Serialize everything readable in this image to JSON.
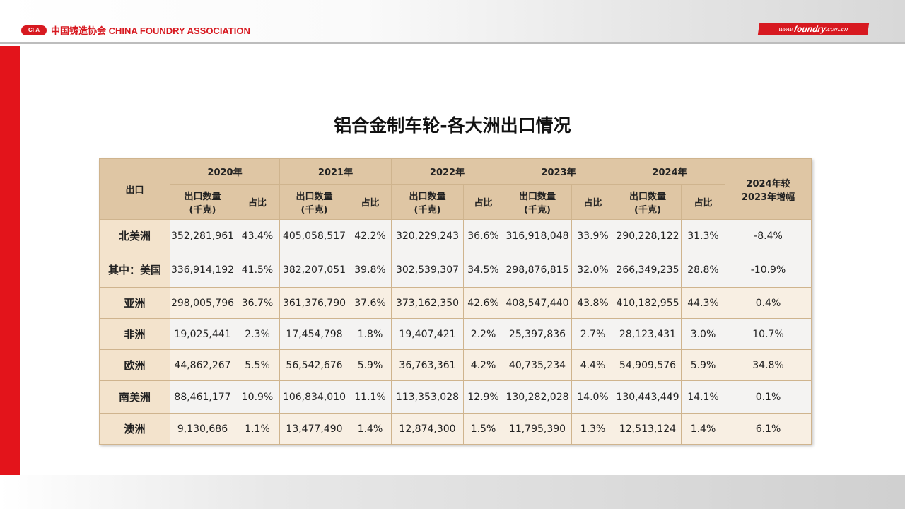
{
  "header": {
    "logo_mark": "CFA",
    "logo_text": "中国铸造协会 CHINA FOUNDRY ASSOCIATION",
    "website_prefix": "www.",
    "website_main": "foundry",
    "website_suffix": ".com.cn"
  },
  "title": "铝合金制车轮-各大洲出口情况",
  "table": {
    "corner": "出口",
    "years": [
      "2020年",
      "2021年",
      "2022年",
      "2023年",
      "2024年"
    ],
    "qty_header_line1": "出口数量",
    "qty_header_line2": "(千克)",
    "share_header": "占比",
    "growth_header_line1": "2024年较",
    "growth_header_line2": "2023年增幅",
    "rows": [
      {
        "label": "北美洲",
        "cells": [
          "352,281,961",
          "43.4%",
          "405,058,517",
          "42.2%",
          "320,229,243",
          "36.6%",
          "316,918,048",
          "33.9%",
          "290,228,122",
          "31.3%",
          "-8.4%"
        ]
      },
      {
        "label": "其中：美国",
        "cells": [
          "336,914,192",
          "41.5%",
          "382,207,051",
          "39.8%",
          "302,539,307",
          "34.5%",
          "298,876,815",
          "32.0%",
          "266,349,235",
          "28.8%",
          "-10.9%"
        ]
      },
      {
        "label": "亚洲",
        "cells": [
          "298,005,796",
          "36.7%",
          "361,376,790",
          "37.6%",
          "373,162,350",
          "42.6%",
          "408,547,440",
          "43.8%",
          "410,182,955",
          "44.3%",
          "0.4%"
        ]
      },
      {
        "label": "非洲",
        "cells": [
          "19,025,441",
          "2.3%",
          "17,454,798",
          "1.8%",
          "19,407,421",
          "2.2%",
          "25,397,836",
          "2.7%",
          "28,123,431",
          "3.0%",
          "10.7%"
        ]
      },
      {
        "label": "欧洲",
        "cells": [
          "44,862,267",
          "5.5%",
          "56,542,676",
          "5.9%",
          "36,763,361",
          "4.2%",
          "40,735,234",
          "4.4%",
          "54,909,576",
          "5.9%",
          "34.8%"
        ]
      },
      {
        "label": "南美洲",
        "cells": [
          "88,461,177",
          "10.9%",
          "106,834,010",
          "11.1%",
          "113,353,028",
          "12.9%",
          "130,282,028",
          "14.0%",
          "130,443,449",
          "14.1%",
          "0.1%"
        ]
      },
      {
        "label": "澳洲",
        "cells": [
          "9,130,686",
          "1.1%",
          "13,477,490",
          "1.4%",
          "12,874,300",
          "1.5%",
          "11,795,390",
          "1.3%",
          "12,513,124",
          "1.4%",
          "6.1%"
        ]
      }
    ]
  },
  "colors": {
    "brand_red": "#e3141b",
    "header_tan": "#dfc6a4"
  }
}
